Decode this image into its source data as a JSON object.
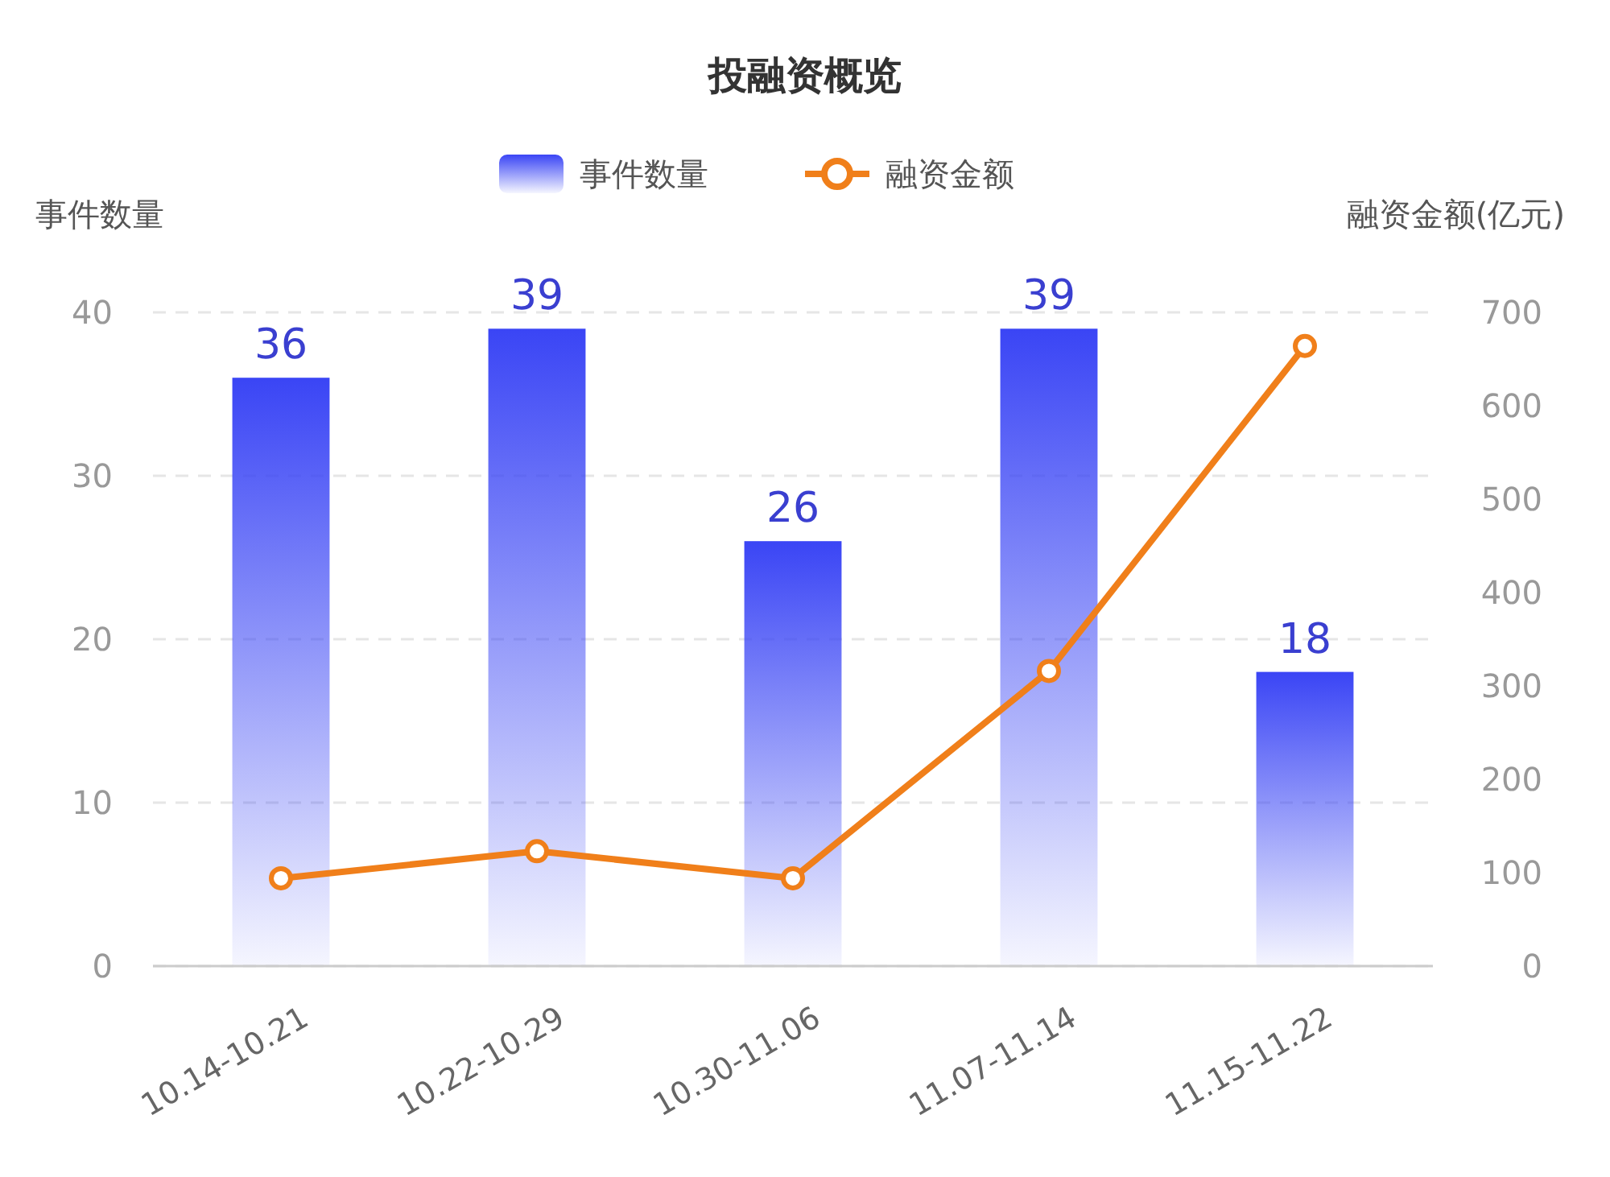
{
  "chart_data": {
    "type": "bar",
    "title": "投融资概览",
    "ylabel": "事件数量",
    "y2label": "融资金额(亿元)",
    "categories": [
      "10.14-10.21",
      "10.22-10.29",
      "10.30-11.06",
      "11.07-11.14",
      "11.15-11.22"
    ],
    "series": [
      {
        "name": "事件数量",
        "color": "#3a45f5",
        "values": [
          36,
          39,
          26,
          39,
          18
        ],
        "value_labels": [
          "36",
          "39",
          "26",
          "39",
          "18"
        ]
      },
      {
        "name": "融资金额",
        "type": "line",
        "axis": "y2",
        "color": "#f07f1a",
        "marker": "circle",
        "values": [
          94,
          123,
          94,
          316,
          664
        ]
      }
    ],
    "ylim": [
      0,
      40
    ],
    "yticks": [
      0,
      10,
      20,
      30,
      40
    ],
    "y2lim": [
      0,
      700
    ],
    "y2ticks": [
      0,
      100,
      200,
      300,
      400,
      500,
      600,
      700
    ],
    "grid": "y",
    "legend": "top"
  }
}
